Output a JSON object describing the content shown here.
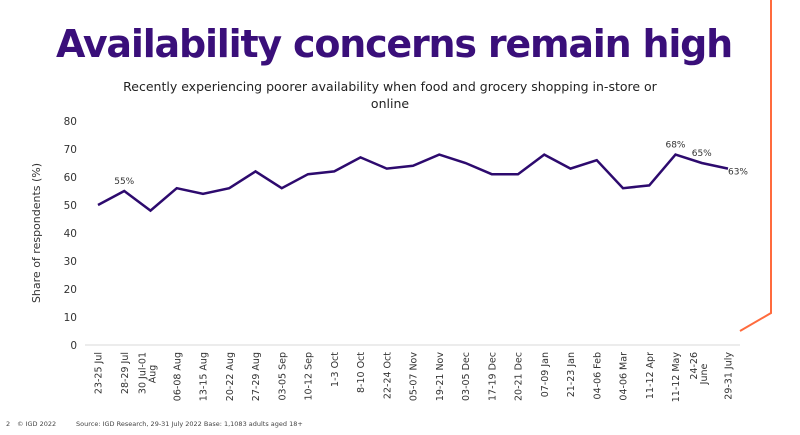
{
  "slide": {
    "title": "Availability concerns remain high",
    "accent_color": "#ff6b3d",
    "title_color": "#3a0f7a",
    "footer": {
      "page_number": "2",
      "copyright": "© IGD 2022",
      "source": "Source: IGD Research, 29-31 July 2022  Base: 1,1083 adults aged 18+"
    }
  },
  "chart_data": {
    "type": "line",
    "title": "Recently experiencing poorer availability when food and grocery shopping in-store or online",
    "title_lines": [
      "Recently experiencing poorer availability when food and grocery shopping in-store or",
      "online"
    ],
    "xlabel": "",
    "ylabel": "Share of respondents (%)",
    "ylim": [
      0,
      80
    ],
    "yticks": [
      0,
      10,
      20,
      30,
      40,
      50,
      60,
      70,
      80
    ],
    "grid": false,
    "legend": "none",
    "line_color": "#2d0a6e",
    "categories": [
      [
        "23-25 Jul"
      ],
      [
        "28-29 Jul"
      ],
      [
        "30 Jul-01",
        "Aug"
      ],
      [
        "06-08 Aug"
      ],
      [
        "13-15 Aug"
      ],
      [
        "20-22 Aug"
      ],
      [
        "27-29 Aug"
      ],
      [
        "03-05 Sep"
      ],
      [
        "10-12 Sep"
      ],
      [
        "1-3 Oct"
      ],
      [
        "8-10 Oct"
      ],
      [
        "22-24 Oct"
      ],
      [
        "05-07 Nov"
      ],
      [
        "19-21 Nov"
      ],
      [
        "03-05 Dec"
      ],
      [
        "17-19 Dec"
      ],
      [
        "20-21 Dec"
      ],
      [
        "07-09 Jan"
      ],
      [
        "21-23 Jan"
      ],
      [
        "04-06 Feb"
      ],
      [
        "04-06 Mar"
      ],
      [
        "11-12 Apr"
      ],
      [
        "11-12 May"
      ],
      [
        "24-26",
        "June"
      ],
      [
        "29-31 July"
      ]
    ],
    "series": [
      {
        "name": "Share of respondents",
        "values": [
          50,
          55,
          48,
          56,
          54,
          56,
          62,
          56,
          61,
          62,
          67,
          63,
          64,
          68,
          65,
          61,
          61,
          68,
          63,
          66,
          56,
          57,
          68,
          65,
          63
        ]
      }
    ],
    "data_labels": [
      {
        "index": 1,
        "text": "55%"
      },
      {
        "index": 22,
        "text": "68%"
      },
      {
        "index": 23,
        "text": "65%"
      },
      {
        "index": 24,
        "text": "63%"
      }
    ]
  }
}
